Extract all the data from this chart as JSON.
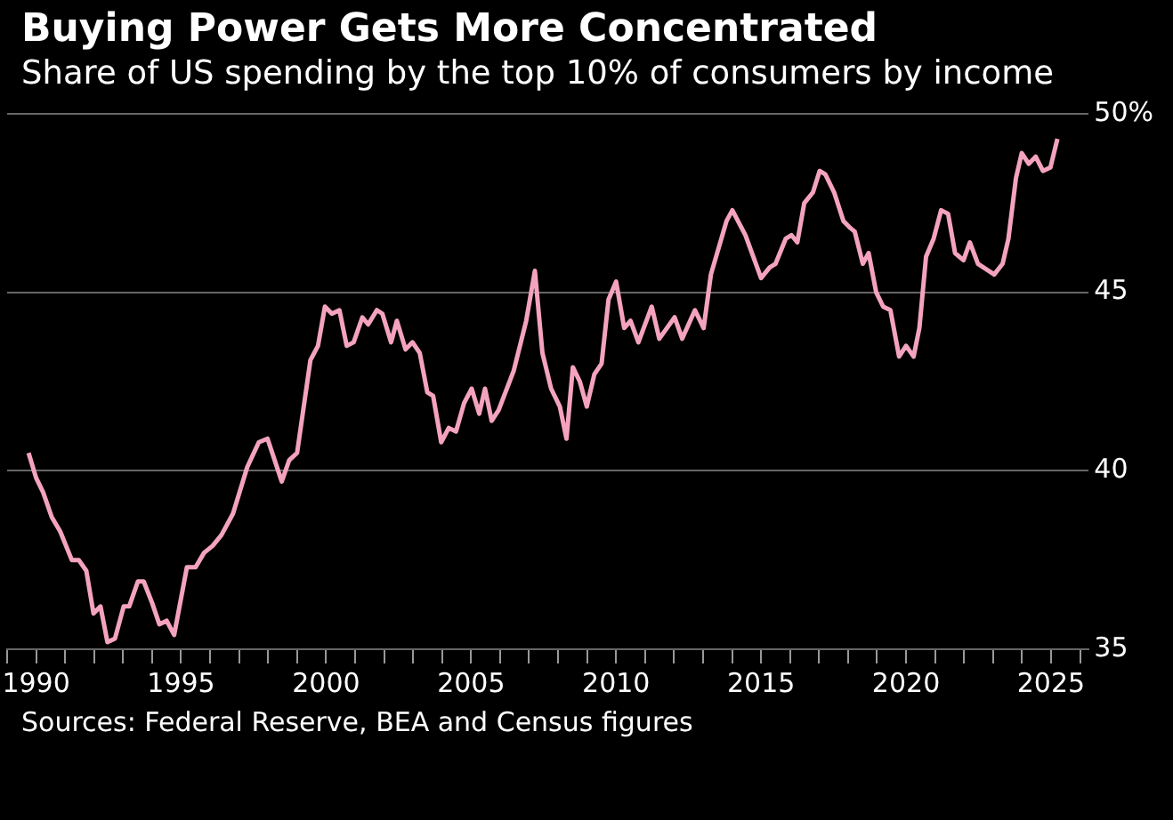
{
  "chart_data": {
    "type": "line",
    "title": "Buying Power Gets More Concentrated",
    "subtitle": "Share of US spending by the top 10% of consumers by income",
    "annotations": [
      "Sources: Federal Reserve, BEA and Census figures"
    ],
    "x": [
      1989.74,
      1990.0,
      1990.24,
      1990.54,
      1990.83,
      1991.23,
      1991.47,
      1991.73,
      1991.98,
      1992.22,
      1992.46,
      1992.72,
      1993.02,
      1993.21,
      1993.51,
      1993.71,
      1994.0,
      1994.25,
      1994.5,
      1994.76,
      1995.2,
      1995.5,
      1995.79,
      1996.09,
      1996.39,
      1996.79,
      1997.28,
      1997.68,
      1997.98,
      1998.47,
      1998.73,
      1999.0,
      1999.46,
      1999.72,
      1999.96,
      2000.2,
      2000.46,
      2000.71,
      2000.95,
      2001.25,
      2001.45,
      2001.75,
      2001.94,
      2002.24,
      2002.44,
      2002.74,
      2002.98,
      2003.23,
      2003.49,
      2003.69,
      2003.97,
      2004.23,
      2004.48,
      2004.76,
      2005.02,
      2005.28,
      2005.48,
      2005.71,
      2005.95,
      2006.47,
      2006.9,
      2007.2,
      2007.46,
      2007.76,
      2008.06,
      2008.29,
      2008.51,
      2008.75,
      2008.99,
      2009.25,
      2009.5,
      2009.74,
      2010.0,
      2010.28,
      2010.5,
      2010.77,
      2011.23,
      2011.49,
      2012.02,
      2012.28,
      2012.72,
      2013.02,
      2013.27,
      2013.81,
      2014.01,
      2014.46,
      2015.0,
      2015.3,
      2015.5,
      2015.85,
      2016.05,
      2016.25,
      2016.49,
      2016.79,
      2017.02,
      2017.22,
      2017.52,
      2017.84,
      2018.08,
      2018.23,
      2018.51,
      2018.71,
      2018.97,
      2019.21,
      2019.46,
      2019.76,
      2020.0,
      2020.26,
      2020.46,
      2020.69,
      2020.95,
      2021.21,
      2021.45,
      2021.69,
      2021.98,
      2022.2,
      2022.48,
      2023.04,
      2023.33,
      2023.53,
      2023.79,
      2023.99,
      2024.23,
      2024.47,
      2024.72,
      2024.98,
      2025.22
    ],
    "series": [
      {
        "color": "#f4a3bf",
        "values": [
          40.5,
          39.8,
          39.4,
          38.7,
          38.3,
          37.5,
          37.5,
          37.2,
          36.0,
          36.2,
          35.2,
          35.3,
          36.2,
          36.2,
          36.9,
          36.9,
          36.3,
          35.7,
          35.8,
          35.4,
          37.3,
          37.3,
          37.7,
          37.9,
          38.2,
          38.8,
          40.1,
          40.8,
          40.9,
          39.7,
          40.3,
          40.5,
          43.1,
          43.5,
          44.6,
          44.4,
          44.5,
          43.5,
          43.6,
          44.3,
          44.1,
          44.5,
          44.4,
          43.6,
          44.2,
          43.4,
          43.6,
          43.3,
          42.2,
          42.1,
          40.8,
          41.2,
          41.1,
          41.9,
          42.3,
          41.6,
          42.3,
          41.4,
          41.7,
          42.8,
          44.2,
          45.6,
          43.3,
          42.3,
          41.8,
          40.9,
          42.9,
          42.5,
          41.8,
          42.7,
          43.0,
          44.8,
          45.3,
          44.0,
          44.2,
          43.6,
          44.6,
          43.7,
          44.3,
          43.7,
          44.5,
          44.0,
          45.5,
          47.0,
          47.3,
          46.6,
          45.4,
          45.7,
          45.8,
          46.5,
          46.6,
          46.4,
          47.5,
          47.8,
          48.4,
          48.3,
          47.8,
          47.0,
          46.8,
          46.7,
          45.8,
          46.1,
          45.0,
          44.6,
          44.5,
          43.2,
          43.5,
          43.2,
          44.0,
          46.0,
          46.5,
          47.3,
          47.2,
          46.1,
          45.9,
          46.4,
          45.8,
          45.5,
          45.8,
          46.5,
          48.2,
          48.9,
          48.6,
          48.8,
          48.4,
          48.5,
          49.3
        ]
      }
    ],
    "xlim": [
      1989,
      2026.3
    ],
    "ylim": [
      35,
      50
    ],
    "xticks": [
      {
        "value": 1989,
        "label": null
      },
      1990,
      {
        "value": 1991,
        "label": null
      },
      {
        "value": 1992,
        "label": null
      },
      {
        "value": 1993,
        "label": null
      },
      {
        "value": 1994,
        "label": null
      },
      1995,
      {
        "value": 1996,
        "label": null
      },
      {
        "value": 1997,
        "label": null
      },
      {
        "value": 1998,
        "label": null
      },
      {
        "value": 1999,
        "label": null
      },
      2000,
      {
        "value": 2001,
        "label": null
      },
      {
        "value": 2002,
        "label": null
      },
      {
        "value": 2003,
        "label": null
      },
      {
        "value": 2004,
        "label": null
      },
      2005,
      {
        "value": 2006,
        "label": null
      },
      {
        "value": 2007,
        "label": null
      },
      {
        "value": 2008,
        "label": null
      },
      {
        "value": 2009,
        "label": null
      },
      2010,
      {
        "value": 2011,
        "label": null
      },
      {
        "value": 2012,
        "label": null
      },
      {
        "value": 2013,
        "label": null
      },
      {
        "value": 2014,
        "label": null
      },
      2015,
      {
        "value": 2016,
        "label": null
      },
      {
        "value": 2017,
        "label": null
      },
      {
        "value": 2018,
        "label": null
      },
      {
        "value": 2019,
        "label": null
      },
      2020,
      {
        "value": 2021,
        "label": null
      },
      {
        "value": 2022,
        "label": null
      },
      {
        "value": 2023,
        "label": null
      },
      {
        "value": 2024,
        "label": null
      },
      2025,
      {
        "value": 2026,
        "label": null
      }
    ],
    "yticks": [
      35,
      40,
      45,
      {
        "value": 50,
        "label": "50%"
      }
    ],
    "grid": "y",
    "legend": false,
    "marker": "none",
    "line_style": "solid"
  }
}
